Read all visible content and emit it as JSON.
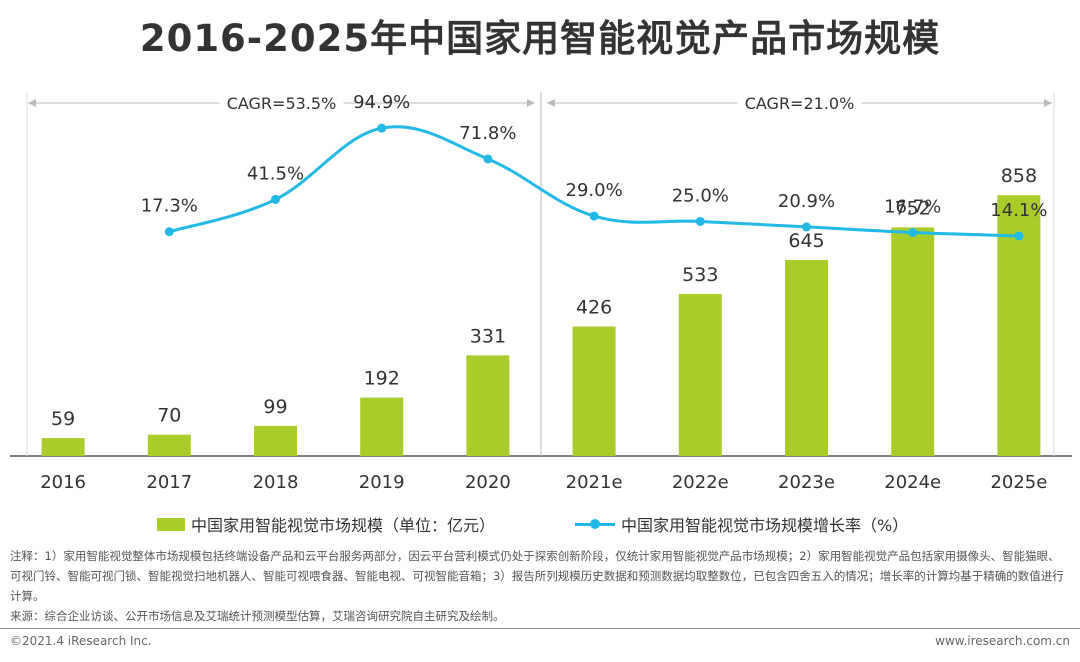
{
  "title": "2016-2025年中国家用智能视觉产品市场规模",
  "chart_data": {
    "type": "bar+line",
    "categories": [
      "2016",
      "2017",
      "2018",
      "2019",
      "2020",
      "2021e",
      "2022e",
      "2023e",
      "2024e",
      "2025e"
    ],
    "series": [
      {
        "name": "中国家用智能视觉市场规模（单位：亿元）",
        "type": "bar",
        "color": "#a9cc2b",
        "values": [
          59,
          70,
          99,
          192,
          331,
          426,
          533,
          645,
          752,
          858
        ],
        "labels": [
          "59",
          "70",
          "99",
          "192",
          "331",
          "426",
          "533",
          "645",
          "752",
          "858"
        ]
      },
      {
        "name": "中国家用智能视觉市场规模增长率（%）",
        "type": "line",
        "color": "#22b9e6",
        "values": [
          null,
          17.3,
          41.5,
          94.9,
          71.8,
          29.0,
          25.0,
          20.9,
          16.7,
          14.1
        ],
        "labels": [
          "",
          "17.3%",
          "41.5%",
          "94.9%",
          "71.8%",
          "29.0%",
          "25.0%",
          "20.9%",
          "16.7%",
          "14.1%"
        ]
      }
    ],
    "bar_ylim": [
      0,
      1000
    ],
    "line_ylim": [
      -150,
      110
    ],
    "cagr": [
      {
        "label": "CAGR=53.5%",
        "from": "2016",
        "to": "2020"
      },
      {
        "label": "CAGR=21.0%",
        "from": "2021e",
        "to": "2025e"
      }
    ]
  },
  "legend": {
    "bar": "中国家用智能视觉市场规模（单位：亿元）",
    "line": "中国家用智能视觉市场规模增长率（%）"
  },
  "note": "注释：1）家用智能视觉整体市场规模包括终端设备产品和云平台服务两部分，因云平台营利模式仍处于探索创新阶段，仅统计家用智能视觉产品市场规模；2）家用智能视觉产品包括家用摄像头、智能猫眼、可视门铃、智能可视门锁、智能视觉扫地机器人、智能可视喂食器、智能电视、可视智能音箱；3）报告所列规模历史数据和预测数据均取整数位，已包含四舍五入的情况；增长率的计算均基于精确的数值进行计算。",
  "source": "来源：综合企业访谈、公开市场信息及艾瑞统计预测模型估算，艾瑞咨询研究院自主研究及绘制。",
  "footer": {
    "copyright": "©2021.4 iResearch Inc.",
    "website": "www.iresearch.com.cn"
  }
}
